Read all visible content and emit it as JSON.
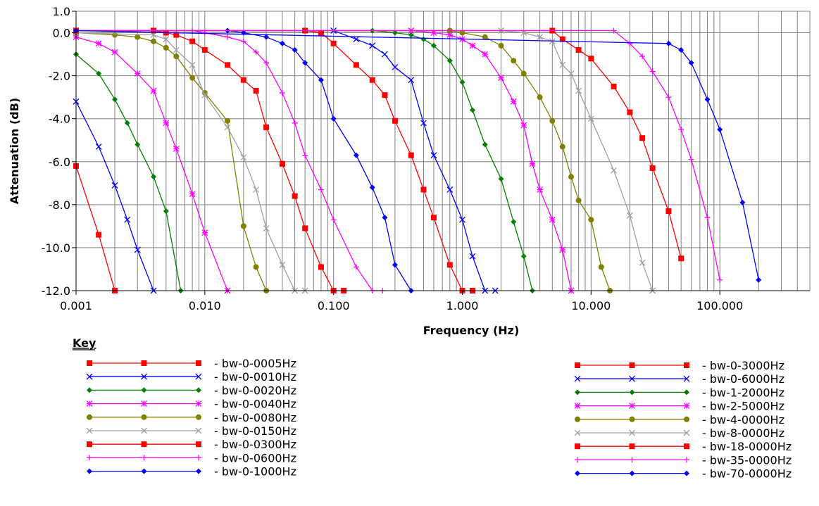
{
  "chart_data": {
    "type": "line",
    "title": "",
    "xlabel": "Frequency (Hz)",
    "ylabel": "Attenuation (dB)",
    "x_scale": "log",
    "xlim": [
      0.001,
      500
    ],
    "ylim": [
      -12.0,
      1.0
    ],
    "grid": true,
    "x_tick_values": [
      0.001,
      0.01,
      0.1,
      1,
      10,
      100
    ],
    "x_tick_labels": [
      "0.001",
      "0.010",
      "0.100",
      "1.000",
      "10.000",
      "100.000"
    ],
    "y_tick_values": [
      1.0,
      0.0,
      -2.0,
      -4.0,
      -6.0,
      -8.0,
      -10.0,
      -12.0
    ],
    "y_tick_labels": [
      "1.0",
      "0.0",
      "-2.0",
      "-4.0",
      "-6.0",
      "-8.0",
      "-10.0",
      "-12.0"
    ],
    "legend_title": "Key",
    "legend_placement": "bottom",
    "series": [
      {
        "name": "bw-0-0005Hz",
        "color": "#ff0000",
        "marker": "square",
        "x": [
          0.001,
          0.0015,
          0.002
        ],
        "y": [
          -6.2,
          -9.4,
          -12.0
        ]
      },
      {
        "name": "bw-0-0010Hz",
        "color": "#0000ff",
        "marker": "x",
        "x": [
          0.001,
          0.0015,
          0.002,
          0.0025,
          0.003,
          0.004
        ],
        "y": [
          -3.2,
          -5.3,
          -7.1,
          -8.7,
          -10.1,
          -12.0
        ]
      },
      {
        "name": "bw-0-0020Hz",
        "color": "#008000",
        "marker": "diamond",
        "x": [
          0.001,
          0.0015,
          0.002,
          0.0025,
          0.003,
          0.004,
          0.005,
          0.0065
        ],
        "y": [
          -1.0,
          -1.9,
          -3.1,
          -4.2,
          -5.2,
          -6.7,
          -8.3,
          -12.0
        ]
      },
      {
        "name": "bw-0-0040Hz",
        "color": "#ff00ff",
        "marker": "asterisk",
        "x": [
          0.001,
          0.0015,
          0.002,
          0.003,
          0.004,
          0.005,
          0.006,
          0.008,
          0.01,
          0.015
        ],
        "y": [
          -0.2,
          -0.5,
          -0.9,
          -1.9,
          -2.7,
          -4.2,
          -5.4,
          -7.5,
          -9.3,
          -12.0
        ]
      },
      {
        "name": "bw-0-0080Hz",
        "color": "#808000",
        "marker": "circle",
        "x": [
          0.001,
          0.002,
          0.003,
          0.004,
          0.005,
          0.006,
          0.008,
          0.01,
          0.015,
          0.02,
          0.025,
          0.03
        ],
        "y": [
          0.0,
          -0.1,
          -0.2,
          -0.4,
          -0.7,
          -1.1,
          -2.1,
          -2.8,
          -4.1,
          -9.0,
          -10.9,
          -12.0
        ]
      },
      {
        "name": "bw-0-0150Hz",
        "color": "#a0a0a0",
        "marker": "x",
        "x": [
          0.001,
          0.004,
          0.005,
          0.006,
          0.008,
          0.01,
          0.015,
          0.02,
          0.025,
          0.03,
          0.04,
          0.05,
          0.06
        ],
        "y": [
          0.0,
          -0.1,
          -0.3,
          -0.8,
          -1.5,
          -2.9,
          -4.4,
          -5.8,
          -7.3,
          -9.1,
          -10.8,
          -12.0,
          -12.0
        ]
      },
      {
        "name": "bw-0-0300Hz",
        "color": "#ff0000",
        "marker": "square",
        "x": [
          0.001,
          0.004,
          0.005,
          0.006,
          0.008,
          0.01,
          0.015,
          0.02,
          0.025,
          0.03,
          0.04,
          0.05,
          0.06,
          0.08,
          0.1,
          0.12
        ],
        "y": [
          0.1,
          0.1,
          0.0,
          -0.1,
          -0.4,
          -0.8,
          -1.5,
          -2.2,
          -2.7,
          -4.4,
          -6.1,
          -7.6,
          -9.1,
          -10.9,
          -12.0,
          -12.0
        ]
      },
      {
        "name": "bw-0-0600Hz",
        "color": "#ff00ff",
        "marker": "plus",
        "x": [
          0.001,
          0.008,
          0.01,
          0.015,
          0.02,
          0.025,
          0.03,
          0.04,
          0.05,
          0.06,
          0.08,
          0.1,
          0.15,
          0.2,
          0.24
        ],
        "y": [
          0.1,
          0.1,
          0.0,
          -0.2,
          -0.4,
          -0.9,
          -1.4,
          -2.8,
          -4.2,
          -5.7,
          -7.3,
          -8.7,
          -10.9,
          -12.0,
          -12.0
        ]
      },
      {
        "name": "bw-0-1000Hz",
        "color": "#0000ff",
        "marker": "diamond",
        "x": [
          0.001,
          0.015,
          0.02,
          0.03,
          0.04,
          0.05,
          0.06,
          0.08,
          0.1,
          0.15,
          0.2,
          0.25,
          0.3,
          0.4
        ],
        "y": [
          0.1,
          0.1,
          0.0,
          -0.2,
          -0.5,
          -0.8,
          -1.4,
          -2.2,
          -4.0,
          -5.7,
          -7.2,
          -8.6,
          -10.8,
          -12.0
        ]
      },
      {
        "name": "bw-0-3000Hz",
        "color": "#ff0000",
        "marker": "square",
        "x": [
          0.001,
          0.06,
          0.08,
          0.1,
          0.15,
          0.2,
          0.25,
          0.3,
          0.4,
          0.5,
          0.6,
          0.8,
          1.0,
          1.2
        ],
        "y": [
          0.1,
          0.1,
          0.0,
          -0.5,
          -1.5,
          -2.2,
          -2.9,
          -4.1,
          -5.7,
          -7.3,
          -8.6,
          -10.8,
          -12.0,
          -12.0
        ]
      },
      {
        "name": "bw-0-6000Hz",
        "color": "#0000ff",
        "marker": "x",
        "x": [
          0.001,
          0.1,
          0.15,
          0.2,
          0.25,
          0.3,
          0.4,
          0.5,
          0.6,
          0.8,
          1.0,
          1.2,
          1.5,
          1.8
        ],
        "y": [
          0.1,
          0.1,
          -0.3,
          -0.6,
          -1.0,
          -1.6,
          -2.2,
          -4.2,
          -5.7,
          -7.3,
          -8.7,
          -10.4,
          -12.0,
          -12.0
        ]
      },
      {
        "name": "bw-1-2000Hz",
        "color": "#008000",
        "marker": "diamond",
        "x": [
          0.001,
          0.2,
          0.3,
          0.4,
          0.5,
          0.6,
          0.8,
          1.0,
          1.2,
          1.5,
          2.0,
          2.5,
          3.0,
          3.5
        ],
        "y": [
          0.1,
          0.1,
          0.0,
          -0.1,
          -0.3,
          -0.6,
          -1.3,
          -2.3,
          -3.6,
          -5.2,
          -6.8,
          -8.8,
          -10.4,
          -12.0
        ]
      },
      {
        "name": "bw-2-5000Hz",
        "color": "#ff00ff",
        "marker": "asterisk",
        "x": [
          0.001,
          0.4,
          0.6,
          0.8,
          1.0,
          1.2,
          1.5,
          2.0,
          2.5,
          3.0,
          3.5,
          4.0,
          5.0,
          6.0,
          7.0
        ],
        "y": [
          0.1,
          0.1,
          0.0,
          -0.1,
          -0.3,
          -0.6,
          -1.0,
          -2.1,
          -3.2,
          -4.3,
          -6.1,
          -7.3,
          -8.7,
          -10.1,
          -12.0
        ]
      },
      {
        "name": "bw-4-0000Hz",
        "color": "#808000",
        "marker": "circle",
        "x": [
          0.001,
          0.8,
          1.0,
          1.5,
          2.0,
          2.5,
          3.0,
          4.0,
          5.0,
          6.0,
          7.0,
          8.0,
          10.0,
          12.0,
          14.0
        ],
        "y": [
          0.1,
          0.1,
          0.0,
          -0.2,
          -0.6,
          -1.3,
          -1.9,
          -3.0,
          -4.1,
          -5.3,
          -6.7,
          -7.8,
          -8.7,
          -10.9,
          -12.0
        ]
      },
      {
        "name": "bw-8-0000Hz",
        "color": "#a0a0a0",
        "marker": "x",
        "x": [
          0.001,
          2.0,
          3.0,
          4.0,
          5.0,
          6.0,
          7.0,
          8.0,
          10.0,
          15.0,
          20.0,
          25.0,
          30.0
        ],
        "y": [
          0.1,
          0.1,
          0.0,
          -0.2,
          -0.4,
          -1.5,
          -1.9,
          -2.7,
          -4.0,
          -6.4,
          -8.5,
          -10.7,
          -12.0
        ]
      },
      {
        "name": "bw-18-0000Hz",
        "color": "#ff0000",
        "marker": "square",
        "x": [
          0.001,
          5.0,
          6.0,
          8.0,
          10.0,
          15.0,
          20.0,
          25.0,
          30.0,
          40.0,
          50.0
        ],
        "y": [
          0.1,
          0.1,
          -0.3,
          -0.8,
          -1.2,
          -2.5,
          -3.7,
          -4.9,
          -6.3,
          -8.3,
          -10.5
        ]
      },
      {
        "name": "bw-35-0000Hz",
        "color": "#ff00ff",
        "marker": "plus",
        "x": [
          0.001,
          15.0,
          20.0,
          25.0,
          30.0,
          40.0,
          50.0,
          60.0,
          80.0,
          100.0
        ],
        "y": [
          0.1,
          0.1,
          -0.5,
          -1.1,
          -1.8,
          -3.0,
          -4.5,
          -5.9,
          -8.6,
          -11.5
        ]
      },
      {
        "name": "bw-70-0000Hz",
        "color": "#0000ff",
        "marker": "diamond",
        "x": [
          0.001,
          40.0,
          50.0,
          60.0,
          80.0,
          100.0,
          150.0,
          200.0
        ],
        "y": [
          0.1,
          -0.5,
          -0.8,
          -1.4,
          -3.1,
          -4.5,
          -7.9,
          -11.5
        ]
      }
    ]
  }
}
